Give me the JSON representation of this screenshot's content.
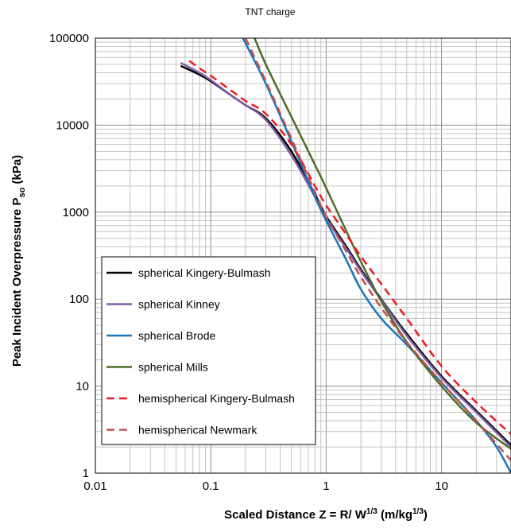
{
  "chart_data": {
    "type": "line",
    "title": "TNT charge",
    "xlabel": "Scaled Distance  Z = R/ W^{1/3}  (m/kg^{1/3})",
    "ylabel": "Peak Incident Overpressure  P_{so}  (kPa)",
    "x_scale": "log",
    "y_scale": "log",
    "xlim": [
      0.01,
      40
    ],
    "ylim": [
      1,
      100000
    ],
    "grid": true,
    "legend_position": "lower-left",
    "x_tick_labels": [
      "0.01",
      "0.1",
      "1",
      "10"
    ],
    "y_tick_labels": [
      "1",
      "10",
      "100",
      "1000",
      "10000",
      "100000"
    ],
    "series": [
      {
        "name": "spherical Kingery-Bulmash",
        "color": "#000000",
        "style": "solid",
        "x": [
          0.055,
          0.08,
          0.1,
          0.15,
          0.2,
          0.3,
          0.5,
          0.8,
          1,
          1.5,
          2,
          3,
          5,
          10,
          20,
          40
        ],
        "y": [
          48000,
          38000,
          32000,
          22000,
          17000,
          12000,
          5000,
          1600,
          900,
          400,
          220,
          100,
          40,
          13,
          5.2,
          2.1
        ]
      },
      {
        "name": "spherical Kinney",
        "color": "#7e5fa6",
        "style": "solid",
        "x": [
          0.055,
          0.08,
          0.1,
          0.15,
          0.2,
          0.3,
          0.5,
          0.8,
          1,
          1.5,
          2,
          3,
          5,
          10,
          20,
          40
        ],
        "y": [
          52000,
          40000,
          33000,
          22000,
          17000,
          11500,
          4500,
          1500,
          850,
          380,
          210,
          98,
          38,
          12.5,
          5,
          2
        ]
      },
      {
        "name": "spherical Brode",
        "color": "#1b75bc",
        "style": "solid",
        "x": [
          0.19,
          0.3,
          0.5,
          0.8,
          1,
          1.5,
          2,
          3,
          5,
          10,
          20,
          30,
          40
        ],
        "y": [
          100000,
          30000,
          6500,
          1500,
          800,
          280,
          130,
          60,
          30,
          11,
          4,
          2,
          1
        ]
      },
      {
        "name": "spherical Mills",
        "color": "#4f6b2a",
        "style": "solid",
        "x": [
          0.24,
          0.3,
          0.5,
          0.8,
          1,
          1.5,
          2,
          3,
          5,
          10,
          20,
          40
        ],
        "y": [
          100000,
          50000,
          12500,
          3500,
          1900,
          600,
          270,
          95,
          32,
          10,
          3.8,
          1.9
        ]
      },
      {
        "name": "hemispherical Kingery-Bulmash",
        "color": "#ee1c24",
        "style": "dashed",
        "x": [
          0.065,
          0.08,
          0.1,
          0.15,
          0.2,
          0.3,
          0.5,
          0.8,
          1,
          1.5,
          2,
          3,
          5,
          10,
          20,
          40
        ],
        "y": [
          55000,
          45000,
          37000,
          25000,
          19000,
          13500,
          6000,
          2000,
          1200,
          550,
          310,
          150,
          60,
          17,
          6.5,
          2.8
        ]
      },
      {
        "name": "hemispherical Newmark",
        "color": "#c0504d",
        "style": "dashed",
        "x": [
          0.2,
          0.3,
          0.5,
          0.8,
          1,
          1.5,
          2,
          3,
          5,
          10,
          20,
          40
        ],
        "y": [
          100000,
          32000,
          7000,
          1700,
          900,
          350,
          180,
          80,
          32,
          11,
          4,
          1.4
        ]
      }
    ]
  }
}
